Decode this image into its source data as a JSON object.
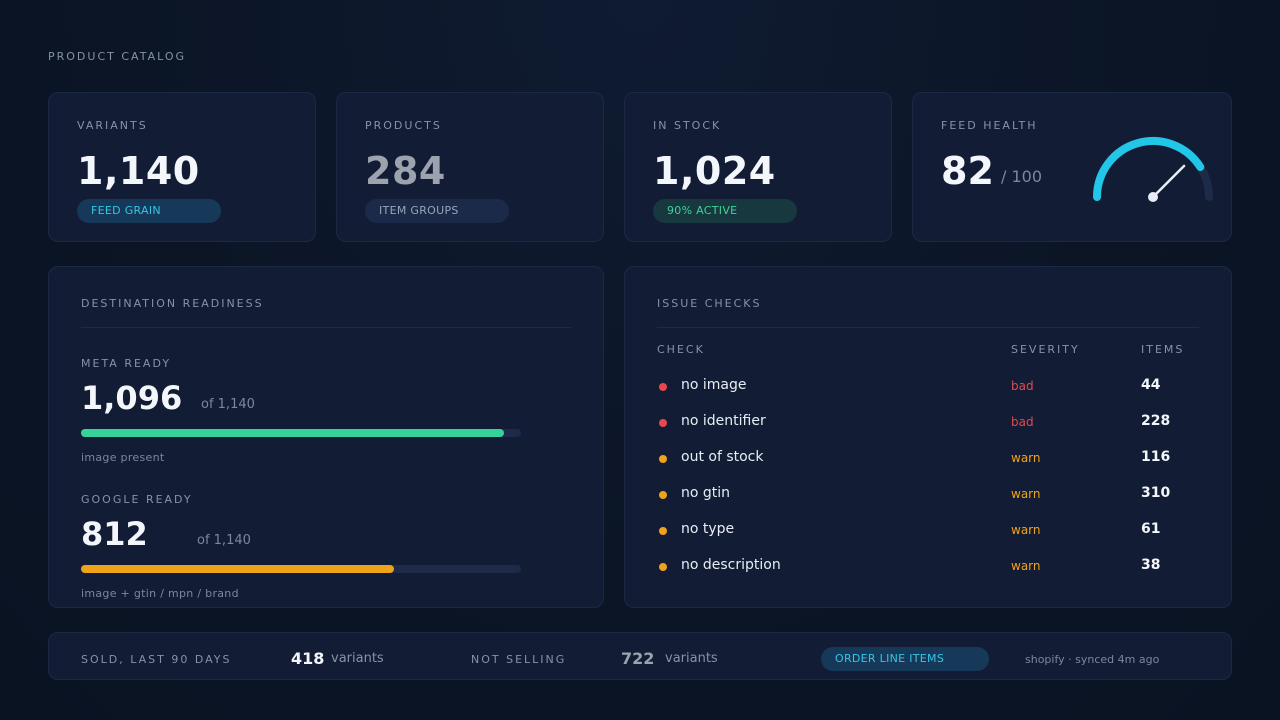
{
  "page": {
    "title": "PRODUCT CATALOG"
  },
  "kpis": {
    "variants": {
      "label": "VARIANTS",
      "value": "1,140",
      "pill": "FEED GRAIN"
    },
    "products": {
      "label": "PRODUCTS",
      "value": "284",
      "pill": "ITEM GROUPS"
    },
    "in_stock": {
      "label": "IN STOCK",
      "value": "1,024",
      "pill": "90% ACTIVE"
    },
    "feed_health": {
      "label": "FEED HEALTH",
      "value": "82",
      "suffix": "/ 100",
      "score": 82,
      "max": 100
    }
  },
  "readiness": {
    "title": "DESTINATION READINESS",
    "meta": {
      "label": "META READY",
      "value": "1,096",
      "of": "of 1,140",
      "fraction": 0.961,
      "note": "image present",
      "color": "#35d39a"
    },
    "google": {
      "label": "GOOGLE READY",
      "value": "812",
      "of": "of 1,140",
      "fraction": 0.712,
      "note": "image + gtin / mpn / brand",
      "color": "#f0a21b"
    }
  },
  "issues": {
    "title": "ISSUE CHECKS",
    "columns": {
      "check": "CHECK",
      "severity": "SEVERITY",
      "items": "ITEMS"
    },
    "rows": [
      {
        "check": "no image",
        "severity": "bad",
        "items": "44"
      },
      {
        "check": "no identifier",
        "severity": "bad",
        "items": "228"
      },
      {
        "check": "out of stock",
        "severity": "warn",
        "items": "116"
      },
      {
        "check": "no gtin",
        "severity": "warn",
        "items": "310"
      },
      {
        "check": "no type",
        "severity": "warn",
        "items": "61"
      },
      {
        "check": "no description",
        "severity": "warn",
        "items": "38"
      }
    ]
  },
  "footer": {
    "sold_label": "SOLD, LAST 90 DAYS",
    "sold_value": "418",
    "sold_unit": "variants",
    "not_selling_label": "NOT SELLING",
    "not_selling_value": "722",
    "not_selling_unit": "variants",
    "pill": "ORDER LINE ITEMS",
    "sync": "shopify · synced 4m ago"
  },
  "colors": {
    "bad": "#e5484d",
    "warn": "#f0a21b",
    "accent": "#22c6e6"
  }
}
